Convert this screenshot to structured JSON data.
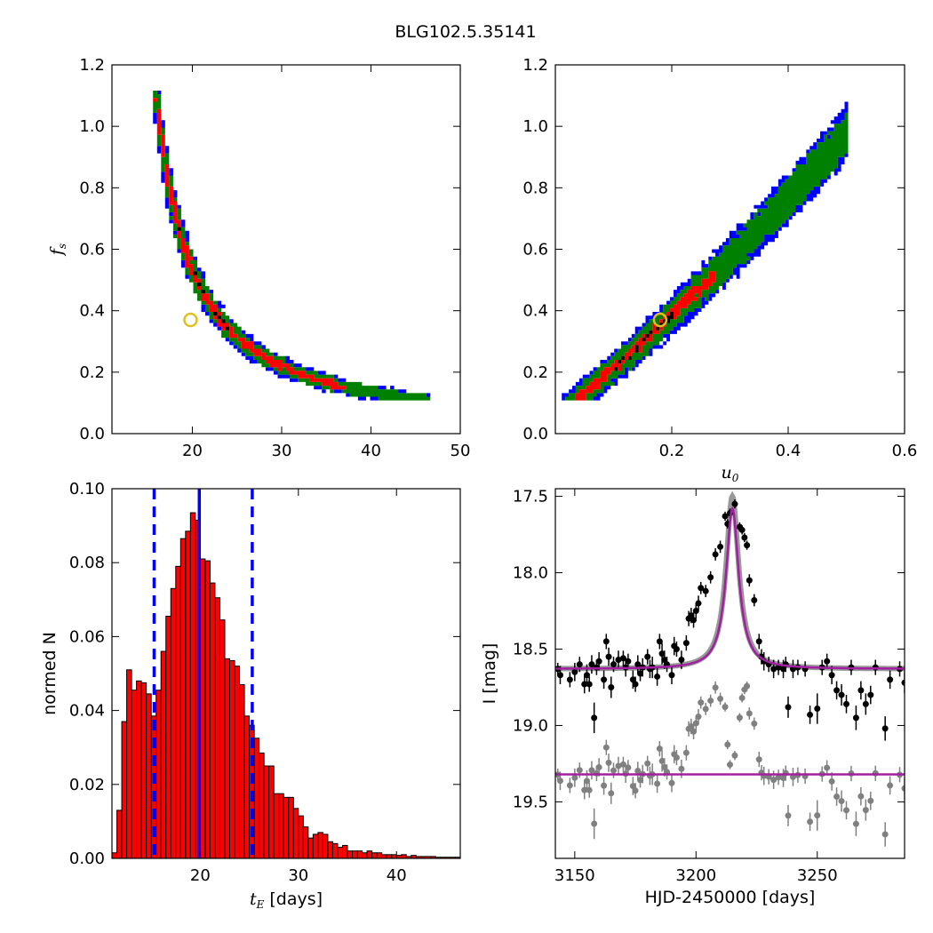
{
  "figure": {
    "title": "BLG102.5.35141"
  },
  "chart_data": [
    {
      "id": "panel-te-fs",
      "type": "heatmap",
      "xlabel": "",
      "ylabel_symbol": "f",
      "ylabel_sub": "s",
      "xlim": [
        11,
        50
      ],
      "ylim": [
        0.0,
        1.2
      ],
      "xticks": [
        20,
        30,
        40,
        50
      ],
      "yticks": [
        0.0,
        0.2,
        0.4,
        0.6,
        0.8,
        1.0,
        1.2
      ],
      "colors": {
        "level3": "#0000ff",
        "level2": "#008000",
        "level1": "#ff0000",
        "core": "#000000"
      },
      "ridge": {
        "relation": "fs = 7.0 * (tE - 11)^-1.19 approx",
        "x_range": [
          12,
          46.5
        ]
      },
      "best_fit": {
        "x": 19.8,
        "y": 0.37
      }
    },
    {
      "id": "panel-u0-fs",
      "type": "heatmap",
      "xlabel_symbol": "u",
      "xlabel_sub": "0",
      "ylabel": "",
      "xlim": [
        0.0,
        0.6
      ],
      "ylim": [
        0.0,
        1.2
      ],
      "xticks": [
        0.2,
        0.4,
        0.6
      ],
      "yticks": [
        0.0,
        0.2,
        0.4,
        0.6,
        0.8,
        1.0,
        1.2
      ],
      "colors": {
        "level3": "#0000ff",
        "level2": "#008000",
        "level1": "#ff0000",
        "core": "#000000"
      },
      "ridge": {
        "x_range": [
          0.005,
          0.5
        ]
      },
      "best_fit": {
        "x": 0.18,
        "y": 0.37
      }
    },
    {
      "id": "panel-te-hist",
      "type": "bar",
      "xlabel_symbol": "t",
      "xlabel_sub": "E",
      "xlabel_text": " [days]",
      "ylabel": "normed N",
      "xlim": [
        11,
        46.5
      ],
      "ylim": [
        0.0,
        0.1
      ],
      "xticks": [
        20,
        30,
        40
      ],
      "yticks": [
        0.0,
        0.02,
        0.04,
        0.06,
        0.08,
        0.1
      ],
      "ytick_labels": [
        "0.00",
        "0.02",
        "0.04",
        "0.06",
        "0.08",
        "0.10"
      ],
      "bin_start": 11.0,
      "bin_width": 0.5,
      "values": [
        0.0015,
        0.013,
        0.037,
        0.051,
        0.0455,
        0.048,
        0.0475,
        0.0445,
        0.0385,
        0.0455,
        0.056,
        0.0655,
        0.073,
        0.079,
        0.0865,
        0.0885,
        0.0935,
        0.0915,
        0.081,
        0.0805,
        0.0745,
        0.0705,
        0.0645,
        0.054,
        0.0535,
        0.052,
        0.047,
        0.0385,
        0.036,
        0.0325,
        0.0285,
        0.025,
        0.025,
        0.0175,
        0.0175,
        0.0165,
        0.0165,
        0.0135,
        0.0115,
        0.0085,
        0.0055,
        0.0065,
        0.007,
        0.0065,
        0.0045,
        0.004,
        0.003,
        0.0035,
        0.002,
        0.002,
        0.002,
        0.0015,
        0.002,
        0.0015,
        0.0015,
        0.001,
        0.001,
        0.001,
        0.0008,
        0.001,
        0.0005,
        0.0008,
        0.0005,
        0.0005,
        0.0005,
        0.0005,
        0.0003,
        0.0003,
        0.0003,
        0.0003,
        0.0003
      ],
      "bar_color": "#ff0000",
      "vlines": [
        {
          "x": 15.3,
          "style": "dashed",
          "color": "#0000ff"
        },
        {
          "x": 19.9,
          "style": "solid",
          "color": "#0000ff"
        },
        {
          "x": 25.3,
          "style": "dashed",
          "color": "#0000ff"
        }
      ]
    },
    {
      "id": "panel-lightcurve",
      "type": "scatter",
      "xlabel": "HJD-2450000 [days]",
      "ylabel": "I [mag]",
      "xlim": [
        3142,
        3286
      ],
      "ylim": [
        19.87,
        17.45
      ],
      "xticks": [
        3150,
        3200,
        3250
      ],
      "yticks": [
        17.5,
        18.0,
        18.5,
        19.0,
        19.5
      ],
      "ytick_labels": [
        "17.5",
        "18.0",
        "18.5",
        "19.0",
        "19.5"
      ],
      "model": {
        "t0": 3215.0,
        "tE": 3.2,
        "base": 18.63,
        "peak": 17.58,
        "color": "#a020a0"
      },
      "residual_offset": 19.32,
      "series": [
        {
          "name": "",
          "color": "#000000",
          "points": [
            [
              3143,
              18.63,
              0.04
            ],
            [
              3144,
              18.67,
              0.06
            ],
            [
              3148,
              18.7,
              0.05
            ],
            [
              3150,
              18.65,
              0.06
            ],
            [
              3152,
              18.6,
              0.05
            ],
            [
              3154,
              18.73,
              0.06
            ],
            [
              3155,
              18.67,
              0.07
            ],
            [
              3156,
              18.73,
              0.05
            ],
            [
              3157,
              18.6,
              0.06
            ],
            [
              3158,
              18.95,
              0.1
            ],
            [
              3159,
              18.62,
              0.05
            ],
            [
              3160,
              18.58,
              0.06
            ],
            [
              3162,
              18.7,
              0.06
            ],
            [
              3163,
              18.45,
              0.05
            ],
            [
              3164,
              18.55,
              0.06
            ],
            [
              3165,
              18.75,
              0.07
            ],
            [
              3166,
              18.6,
              0.05
            ],
            [
              3168,
              18.57,
              0.06
            ],
            [
              3170,
              18.56,
              0.05
            ],
            [
              3171,
              18.62,
              0.06
            ],
            [
              3172,
              18.58,
              0.05
            ],
            [
              3174,
              18.7,
              0.06
            ],
            [
              3175,
              18.73,
              0.05
            ],
            [
              3176,
              18.6,
              0.06
            ],
            [
              3177,
              18.66,
              0.05
            ],
            [
              3178,
              18.62,
              0.06
            ],
            [
              3180,
              18.55,
              0.05
            ],
            [
              3181,
              18.63,
              0.06
            ],
            [
              3182,
              18.62,
              0.07
            ],
            [
              3184,
              18.68,
              0.06
            ],
            [
              3185,
              18.45,
              0.05
            ],
            [
              3186,
              18.53,
              0.07
            ],
            [
              3187,
              18.57,
              0.06
            ],
            [
              3188,
              18.6,
              0.05
            ],
            [
              3190,
              18.67,
              0.06
            ],
            [
              3191,
              18.48,
              0.06
            ],
            [
              3192,
              18.5,
              0.05
            ],
            [
              3194,
              18.57,
              0.06
            ],
            [
              3196,
              18.46,
              0.05
            ],
            [
              3197,
              18.3,
              0.05
            ],
            [
              3198,
              18.28,
              0.05
            ],
            [
              3199,
              18.31,
              0.05
            ],
            [
              3200,
              18.25,
              0.05
            ],
            [
              3201,
              18.2,
              0.05
            ],
            [
              3202,
              18.1,
              0.04
            ],
            [
              3204,
              18.12,
              0.04
            ],
            [
              3206,
              18.03,
              0.04
            ],
            [
              3208,
              17.88,
              0.04
            ],
            [
              3210,
              17.83,
              0.04
            ],
            [
              3212,
              17.63,
              0.03
            ],
            [
              3213,
              17.68,
              0.03
            ],
            [
              3214,
              17.61,
              0.03
            ],
            [
              3216,
              17.55,
              0.03
            ],
            [
              3218,
              17.7,
              0.03
            ],
            [
              3219,
              17.72,
              0.03
            ],
            [
              3220,
              17.77,
              0.03
            ],
            [
              3221,
              17.82,
              0.03
            ],
            [
              3222,
              18.05,
              0.04
            ],
            [
              3224,
              18.18,
              0.04
            ],
            [
              3226,
              18.45,
              0.05
            ],
            [
              3227,
              18.55,
              0.05
            ],
            [
              3228,
              18.58,
              0.06
            ],
            [
              3230,
              18.6,
              0.05
            ],
            [
              3232,
              18.63,
              0.06
            ],
            [
              3234,
              18.62,
              0.05
            ],
            [
              3236,
              18.63,
              0.06
            ],
            [
              3237,
              18.6,
              0.05
            ],
            [
              3238,
              18.88,
              0.07
            ],
            [
              3240,
              18.63,
              0.06
            ],
            [
              3242,
              18.62,
              0.05
            ],
            [
              3245,
              18.63,
              0.05
            ],
            [
              3247,
              18.93,
              0.06
            ],
            [
              3250,
              18.89,
              0.1
            ],
            [
              3252,
              18.62,
              0.05
            ],
            [
              3254,
              18.58,
              0.05
            ],
            [
              3256,
              18.67,
              0.06
            ],
            [
              3258,
              18.77,
              0.06
            ],
            [
              3260,
              18.8,
              0.07
            ],
            [
              3262,
              18.86,
              0.06
            ],
            [
              3264,
              18.62,
              0.05
            ],
            [
              3266,
              18.95,
              0.08
            ],
            [
              3268,
              18.77,
              0.06
            ],
            [
              3270,
              18.86,
              0.07
            ],
            [
              3272,
              18.8,
              0.06
            ],
            [
              3274,
              18.62,
              0.05
            ],
            [
              3278,
              19.02,
              0.08
            ],
            [
              3280,
              18.7,
              0.06
            ],
            [
              3284,
              18.63,
              0.05
            ],
            [
              3286,
              18.72,
              0.07
            ]
          ]
        }
      ]
    }
  ]
}
